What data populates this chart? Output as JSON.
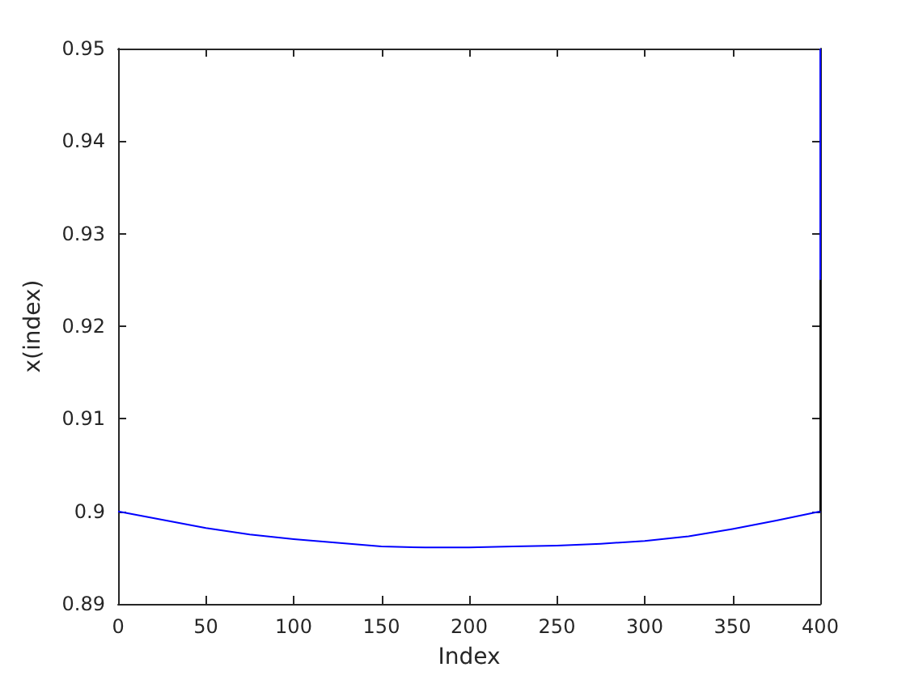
{
  "chart_data": {
    "type": "line",
    "xlabel": "Index",
    "ylabel": "x(index)",
    "xlim": [
      0,
      400
    ],
    "ylim": [
      0.89,
      0.95
    ],
    "xticks": [
      0,
      50,
      100,
      150,
      200,
      250,
      300,
      350,
      400
    ],
    "yticks": [
      0.89,
      0.9,
      0.91,
      0.92,
      0.93,
      0.94,
      0.95
    ],
    "grid": false,
    "marker": "none",
    "line_style": "solid",
    "series": [
      {
        "color": "#0000ff",
        "x": [
          0,
          25,
          50,
          75,
          100,
          125,
          150,
          175,
          200,
          225,
          250,
          275,
          300,
          325,
          350,
          375,
          400,
          400
        ],
        "values": [
          0.9,
          0.8991,
          0.8982,
          0.8975,
          0.897,
          0.8966,
          0.8962,
          0.8961,
          0.8961,
          0.8962,
          0.8963,
          0.8965,
          0.8968,
          0.8973,
          0.8981,
          0.899,
          0.9,
          0.95
        ]
      },
      {
        "color": "#000000",
        "x": [
          400,
          400
        ],
        "values": [
          0.9,
          0.925
        ]
      }
    ]
  }
}
